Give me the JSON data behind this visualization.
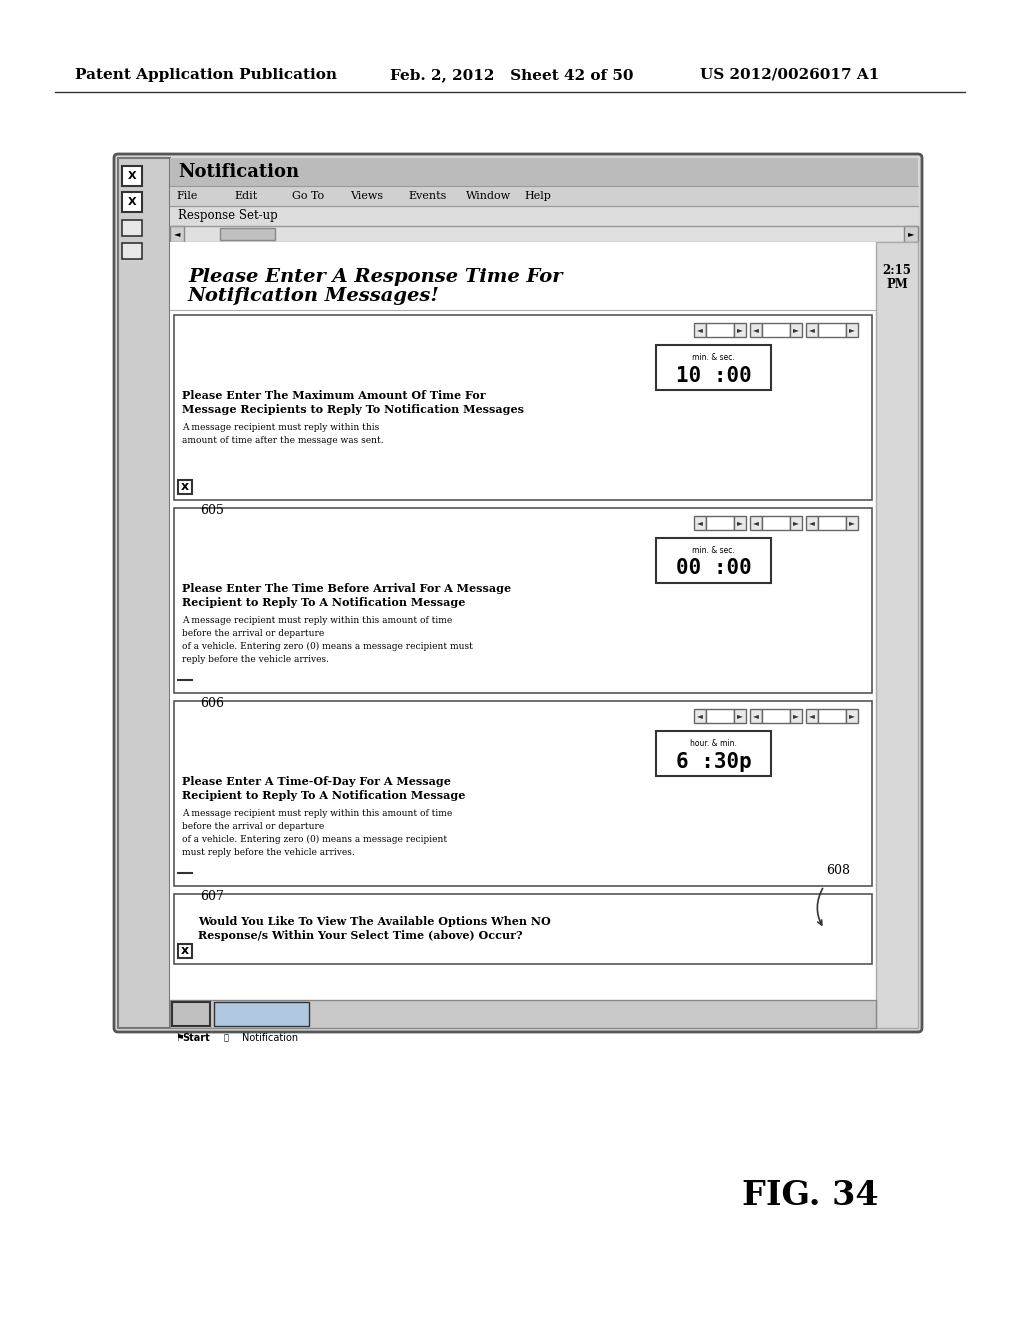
{
  "header_left": "Patent Application Publication",
  "header_mid": "Feb. 2, 2012   Sheet 42 of 50",
  "header_right": "US 2012/0026017 A1",
  "fig_label": "FIG. 34",
  "app_title": "Notification",
  "menu_items": [
    "File",
    "Edit",
    "Go To",
    "Views",
    "Events",
    "Window",
    "Help"
  ],
  "breadcrumb": "Response Set-up",
  "section4_header_line1": "Would You Like To View The Available Options When NO",
  "section4_header_line2": "Response/s Within Your Select Time (above) Occur?",
  "ref_608": "608",
  "taskbar_time_line1": "2:15",
  "taskbar_time_line2": "PM",
  "taskbar_start": "Start",
  "taskbar_app": "Notification",
  "bg_color": "#ffffff",
  "sections": [
    {
      "header_line1": "Please Enter The Maximum Amount Of Time For",
      "header_line2": "Message Recipients to Reply To Notification Messages",
      "sub_lines": [
        "A message recipient must reply within this",
        "amount of time after the message was sent."
      ],
      "time_main": "10 :00",
      "time_sub": "min. & sec.",
      "label": "605",
      "checkbox": "X"
    },
    {
      "header_line1": "Please Enter The Time Before Arrival For A Message",
      "header_line2": "Recipient to Reply To A Notification Message",
      "sub_lines": [
        "A message recipient must reply within this amount of time",
        "before the arrival or departure",
        "of a vehicle. Entering zero (0) means a message recipient must",
        "reply before the vehicle arrives."
      ],
      "time_main": "00 :00",
      "time_sub": "min. & sec.",
      "label": "606",
      "checkbox": ""
    },
    {
      "header_line1": "Please Enter A Time-Of-Day For A Message",
      "header_line2": "Recipient to Reply To A Notification Message",
      "sub_lines": [
        "A message recipient must reply within this amount of time",
        "before the arrival or departure",
        "of a vehicle. Entering zero (0) means a message recipient",
        "must reply before the vehicle arrives."
      ],
      "time_main": "6 :30p",
      "time_sub": "hour. & min.",
      "label": "607",
      "checkbox": ""
    }
  ]
}
